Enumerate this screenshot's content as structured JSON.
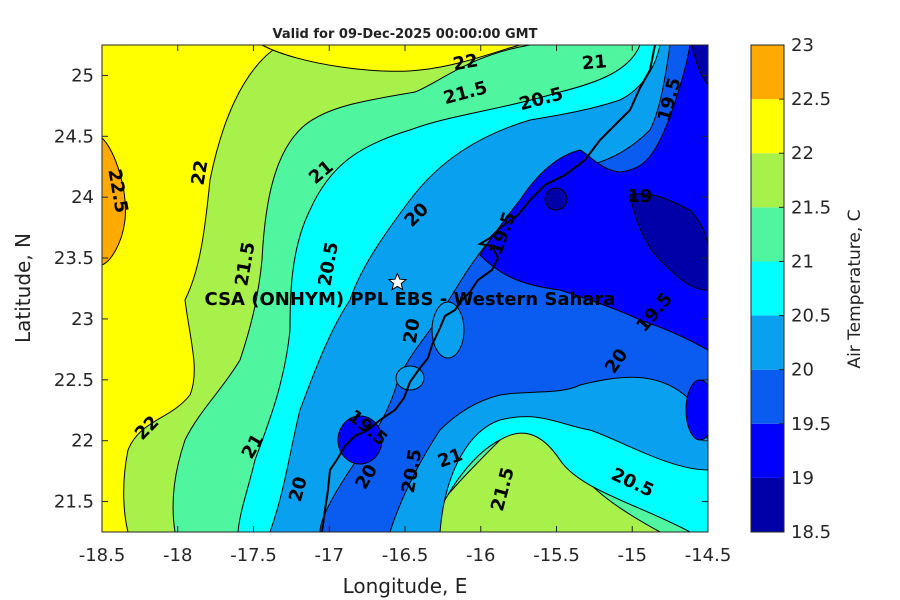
{
  "chart_data": {
    "type": "heatmap",
    "title": "Valid for 09-Dec-2025 00:00:00 GMT",
    "xlabel": "Longitude, E",
    "ylabel": "Latitude, N",
    "xlim": [
      -18.5,
      -14.5
    ],
    "ylim": [
      21.25,
      25.25
    ],
    "x_ticks": [
      "-18.5",
      "-18",
      "-17.5",
      "-17",
      "-16.5",
      "-16",
      "-15.5",
      "-15",
      "-14.5"
    ],
    "y_ticks": [
      "21.5",
      "22",
      "22.5",
      "23",
      "23.5",
      "24",
      "24.5",
      "25"
    ],
    "colorbar": {
      "label": "Air Temperature, C",
      "levels": [
        "18.5",
        "19",
        "19.5",
        "20",
        "20.5",
        "21",
        "21.5",
        "22",
        "22.5",
        "23"
      ],
      "colors": [
        "#0000a8",
        "#0000ff",
        "#0a5cf0",
        "#0aa0f0",
        "#00ffff",
        "#50f5a0",
        "#a8f04a",
        "#ffff00",
        "#ffaa00",
        "#ff5500"
      ]
    },
    "contour_labels": [
      {
        "text": "22",
        "lon": -16.1,
        "lat": 25.1,
        "rot": -10
      },
      {
        "text": "21",
        "lon": -15.25,
        "lat": 25.1,
        "rot": -5
      },
      {
        "text": "21.5",
        "lon": -16.1,
        "lat": 24.85,
        "rot": -15
      },
      {
        "text": "20.5",
        "lon": -15.6,
        "lat": 24.8,
        "rot": -15
      },
      {
        "text": "19.5",
        "lon": -14.75,
        "lat": 24.8,
        "rot": -75
      },
      {
        "text": "22.5",
        "lon": -18.4,
        "lat": 24.05,
        "rot": 80
      },
      {
        "text": "22",
        "lon": -17.85,
        "lat": 24.2,
        "rot": -80
      },
      {
        "text": "21",
        "lon": -17.05,
        "lat": 24.2,
        "rot": -40
      },
      {
        "text": "20",
        "lon": -16.42,
        "lat": 23.85,
        "rot": -45
      },
      {
        "text": "19.5",
        "lon": -15.85,
        "lat": 23.7,
        "rot": -70
      },
      {
        "text": "19",
        "lon": -14.95,
        "lat": 24.0,
        "rot": 0
      },
      {
        "text": "21.5",
        "lon": -17.55,
        "lat": 23.45,
        "rot": -80
      },
      {
        "text": "20.5",
        "lon": -17.0,
        "lat": 23.45,
        "rot": -80
      },
      {
        "text": "19.5",
        "lon": -14.85,
        "lat": 23.05,
        "rot": -50
      },
      {
        "text": "20",
        "lon": -16.45,
        "lat": 22.9,
        "rot": -80
      },
      {
        "text": "20",
        "lon": -15.1,
        "lat": 22.65,
        "rot": -55
      },
      {
        "text": "22",
        "lon": -18.2,
        "lat": 22.1,
        "rot": -45
      },
      {
        "text": "19.5",
        "lon": -16.75,
        "lat": 22.1,
        "rot": 40
      },
      {
        "text": "21",
        "lon": -17.5,
        "lat": 21.95,
        "rot": -60
      },
      {
        "text": "20",
        "lon": -16.75,
        "lat": 21.7,
        "rot": -60
      },
      {
        "text": "20.5",
        "lon": -16.45,
        "lat": 21.75,
        "rot": -80
      },
      {
        "text": "21",
        "lon": -16.2,
        "lat": 21.85,
        "rot": -20
      },
      {
        "text": "21.5",
        "lon": -15.85,
        "lat": 21.6,
        "rot": -75
      },
      {
        "text": "20.5",
        "lon": -15.0,
        "lat": 21.65,
        "rot": 25
      },
      {
        "text": "20",
        "lon": -17.2,
        "lat": 21.6,
        "rot": -75
      }
    ],
    "station": {
      "name": "CSA (ONHYM) PPL EBS - Western Sahara",
      "lon": -16.55,
      "lat": 23.3
    }
  }
}
